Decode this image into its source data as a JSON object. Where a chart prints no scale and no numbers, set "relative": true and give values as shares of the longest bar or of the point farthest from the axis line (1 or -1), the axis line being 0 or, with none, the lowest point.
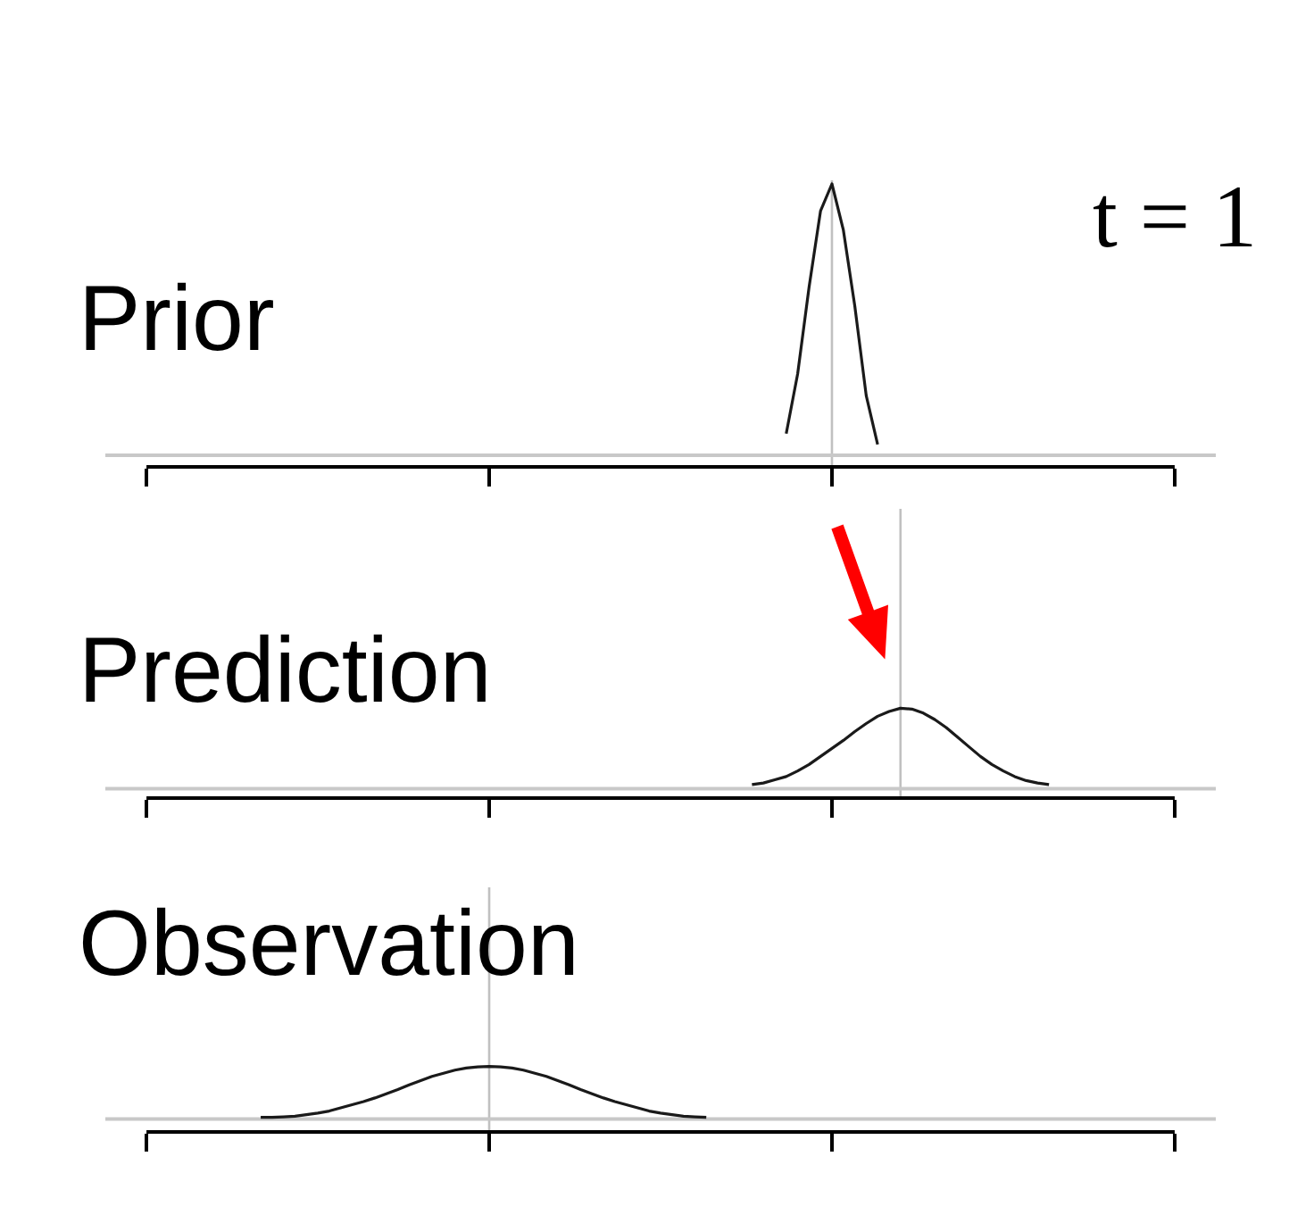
{
  "chart_data": [
    {
      "type": "line",
      "title": "Prior",
      "annotations": [
        "t = 1"
      ],
      "relative": true,
      "categories": [
        null,
        null,
        null,
        null,
        null,
        null,
        null,
        null,
        null,
        null,
        null,
        null,
        null,
        null,
        null,
        null,
        null,
        null,
        null,
        null,
        null,
        null,
        null,
        null,
        null,
        null,
        null,
        null,
        null,
        null,
        null,
        null,
        null,
        null,
        null,
        null,
        null,
        null,
        null,
        null,
        null,
        null,
        null,
        null,
        null,
        null,
        null,
        null,
        null,
        null,
        null,
        null,
        null,
        null,
        null,
        null,
        null,
        null,
        null,
        null,
        null,
        null,
        null,
        null,
        null,
        null,
        null,
        null,
        null,
        null,
        null,
        null,
        null,
        null,
        null,
        null,
        null,
        null,
        null,
        null,
        null,
        null,
        null,
        null,
        null,
        null,
        null,
        null,
        null,
        null,
        null
      ],
      "series": [
        {
          "color": "#1a1a1a",
          "values": [
            null,
            null,
            null,
            null,
            null,
            null,
            null,
            null,
            null,
            null,
            null,
            null,
            null,
            null,
            null,
            null,
            null,
            null,
            null,
            null,
            null,
            null,
            null,
            null,
            null,
            null,
            null,
            null,
            null,
            null,
            null,
            null,
            null,
            null,
            null,
            null,
            null,
            null,
            null,
            null,
            null,
            null,
            null,
            null,
            null,
            null,
            null,
            null,
            null,
            null,
            null,
            null,
            null,
            null,
            null,
            null,
            0.08,
            0.3,
            0.62,
            0.9,
            1,
            0.83,
            0.55,
            0.22,
            0.04,
            null,
            null,
            null,
            null,
            null,
            null,
            null,
            null,
            null,
            null,
            null,
            null,
            null,
            null,
            null,
            null,
            null,
            null,
            null,
            null,
            null,
            null,
            null,
            null,
            null,
            null
          ]
        }
      ],
      "ref_lines": [
        {
          "axis": "y",
          "value": 0,
          "color": "#c8c8c8"
        }
      ]
    },
    {
      "type": "line",
      "title": "Prediction",
      "relative": true,
      "categories": [
        null,
        null,
        null,
        null,
        null,
        null,
        null,
        null,
        null,
        null,
        null,
        null,
        null,
        null,
        null,
        null,
        null,
        null,
        null,
        null,
        null,
        null,
        null,
        null,
        null,
        null,
        null,
        null,
        null,
        null,
        null,
        null,
        null,
        null,
        null,
        null,
        null,
        null,
        null,
        null,
        null,
        null,
        null,
        null,
        null,
        null,
        null,
        null,
        null,
        null,
        null,
        null,
        null,
        null,
        null,
        null,
        null,
        null,
        null,
        null,
        null,
        null,
        null,
        null,
        null,
        null,
        null,
        null,
        null,
        null,
        null,
        null,
        null,
        null,
        null,
        null,
        null,
        null,
        null,
        null,
        null,
        null,
        null,
        null,
        null,
        null,
        null,
        null,
        null,
        null,
        null
      ],
      "series": [
        {
          "color": "#1a1a1a",
          "values": [
            null,
            null,
            null,
            null,
            null,
            null,
            null,
            null,
            null,
            null,
            null,
            null,
            null,
            null,
            null,
            null,
            null,
            null,
            null,
            null,
            null,
            null,
            null,
            null,
            null,
            null,
            null,
            null,
            null,
            null,
            null,
            null,
            null,
            null,
            null,
            null,
            null,
            null,
            null,
            null,
            null,
            null,
            null,
            null,
            null,
            null,
            null,
            null,
            null,
            null,
            null,
            null,
            null,
            0.05,
            0.07,
            0.11,
            0.15,
            0.22,
            0.3,
            0.4,
            0.5,
            0.6,
            0.71,
            0.81,
            0.9,
            0.96,
            1,
            0.99,
            0.94,
            0.86,
            0.76,
            0.64,
            0.52,
            0.4,
            0.3,
            0.22,
            0.15,
            0.1,
            0.07,
            0.05,
            null,
            null,
            null,
            null,
            null,
            null,
            null,
            null,
            null,
            null,
            null
          ]
        }
      ],
      "ref_lines": [
        {
          "axis": "y",
          "value": 0,
          "color": "#c8c8c8"
        }
      ]
    },
    {
      "type": "line",
      "title": "Observation",
      "relative": true,
      "categories": [
        null,
        null,
        null,
        null,
        null,
        null,
        null,
        null,
        null,
        null,
        null,
        null,
        null,
        null,
        null,
        null,
        null,
        null,
        null,
        null,
        null,
        null,
        null,
        null,
        null,
        null,
        null,
        null,
        null,
        null,
        null,
        null,
        null,
        null,
        null,
        null,
        null,
        null,
        null,
        null,
        null,
        null,
        null,
        null,
        null,
        null,
        null,
        null,
        null,
        null,
        null,
        null,
        null,
        null,
        null,
        null,
        null,
        null,
        null,
        null,
        null,
        null,
        null,
        null,
        null,
        null,
        null,
        null,
        null,
        null,
        null,
        null,
        null,
        null,
        null,
        null,
        null,
        null,
        null,
        null,
        null,
        null,
        null,
        null,
        null,
        null,
        null,
        null,
        null,
        null,
        null
      ],
      "series": [
        {
          "color": "#1a1a1a",
          "values": [
            null,
            null,
            null,
            null,
            null,
            null,
            null,
            null,
            null,
            null,
            0.03,
            0.03,
            0.04,
            0.05,
            0.08,
            0.11,
            0.15,
            0.21,
            0.27,
            0.33,
            0.4,
            0.48,
            0.56,
            0.65,
            0.73,
            0.81,
            0.87,
            0.93,
            0.97,
            0.99,
            1,
            0.99,
            0.97,
            0.93,
            0.87,
            0.81,
            0.73,
            0.65,
            0.56,
            0.48,
            0.4,
            0.33,
            0.27,
            0.21,
            0.15,
            0.11,
            0.08,
            0.05,
            0.04,
            0.03,
            null,
            null,
            null,
            null,
            null,
            null,
            null,
            null,
            null,
            null,
            null,
            null,
            null,
            null,
            null,
            null,
            null,
            null,
            null,
            null,
            null,
            null,
            null,
            null,
            null,
            null,
            null,
            null,
            null,
            null,
            null,
            null,
            null,
            null,
            null,
            null,
            null,
            null,
            null,
            null,
            null
          ]
        }
      ],
      "ref_lines": [
        {
          "axis": "y",
          "value": 0,
          "color": "#c8c8c8"
        }
      ]
    }
  ]
}
